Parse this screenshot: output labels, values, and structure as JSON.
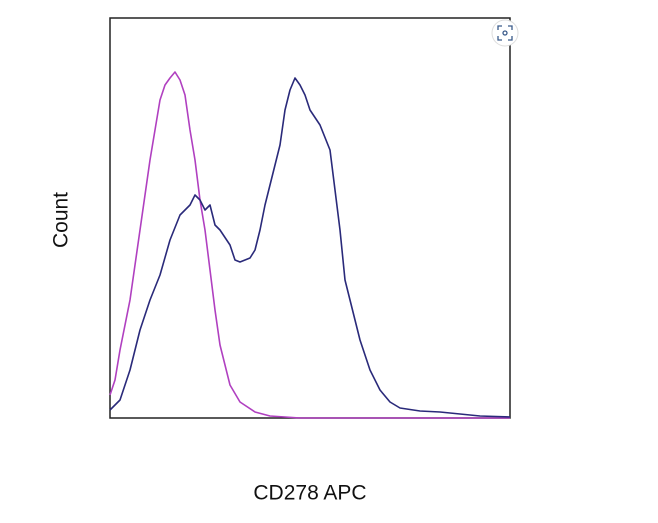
{
  "chart_data": {
    "type": "line",
    "x_label": "CD278 APC",
    "y_label": "Count",
    "xlim": [
      0,
      100
    ],
    "ylim": [
      0,
      100
    ],
    "series": [
      {
        "color": "#b040c0",
        "x": [
          0,
          1.25,
          2.5,
          5,
          7.5,
          10,
          12.5,
          13.75,
          15,
          16.25,
          17.5,
          18.75,
          20,
          21.25,
          22.5,
          23.75,
          25,
          26.25,
          27.5,
          30,
          32.5,
          36.25,
          40,
          47.5,
          100
        ],
        "values": [
          5.75,
          9.5,
          17,
          29.5,
          47,
          64.5,
          79.5,
          83.25,
          85,
          86.5,
          84.5,
          80.75,
          72,
          64.5,
          54.5,
          47,
          37,
          27,
          18.25,
          8.25,
          4,
          1.5,
          0.5,
          0,
          0
        ]
      },
      {
        "color": "#2a2a7a",
        "x": [
          0,
          2.5,
          5,
          7.5,
          10,
          12.5,
          15,
          17.5,
          20,
          21.25,
          22.5,
          23.75,
          25,
          26.25,
          27.5,
          30,
          31.25,
          32.5,
          35,
          36.25,
          37.5,
          38.75,
          40,
          41.25,
          42.5,
          43.75,
          45,
          46.25,
          47.5,
          48.75,
          50,
          52.5,
          55,
          56.25,
          57.5,
          58.75,
          60,
          62.5,
          65,
          67.5,
          70,
          72.5,
          77.5,
          82.5,
          87.5,
          92.5,
          100
        ],
        "values": [
          2,
          4.5,
          12,
          22,
          29.5,
          35.75,
          44.5,
          50.75,
          53.25,
          55.75,
          54.5,
          52,
          53.25,
          48.25,
          47,
          43.25,
          39.5,
          39,
          40,
          42,
          47,
          53.25,
          58.25,
          63.25,
          68.25,
          77,
          82,
          85,
          83.25,
          80.75,
          77,
          73.25,
          67,
          57,
          47,
          34.5,
          29.5,
          19.5,
          12,
          7,
          4,
          2.5,
          1.75,
          1.5,
          1,
          0.5,
          0.25
        ]
      }
    ]
  }
}
